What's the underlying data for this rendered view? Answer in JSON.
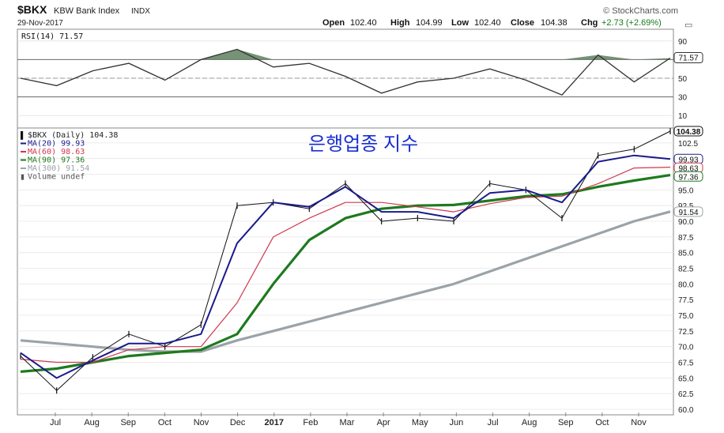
{
  "header": {
    "symbol": "$BKX",
    "name": "KBW Bank Index",
    "exchange": "INDX",
    "date": "29-Nov-2017",
    "brand": "© StockCharts.com",
    "quote": {
      "open_label": "Open",
      "open": "102.40",
      "high_label": "High",
      "high": "104.99",
      "low_label": "Low",
      "low": "102.40",
      "close_label": "Close",
      "close": "104.38",
      "chg_label": "Chg",
      "chg": "+2.73 (+2.69%)"
    }
  },
  "annotation": "은행업종 지수",
  "rsi_panel": {
    "label": "RSI(14) 71.57",
    "last_value_tag": "71.57",
    "axis_ticks": [
      90,
      70,
      50,
      30,
      10
    ],
    "colors": {
      "line": "#333333",
      "fill_overbought": "#5f7f5f"
    }
  },
  "price_panel": {
    "legend": [
      {
        "text": "$BKX (Daily) 104.38",
        "color": "#222222",
        "key": "bars"
      },
      {
        "text": "MA(20) 99.93",
        "color": "#1a1a8c",
        "key": "ma20"
      },
      {
        "text": "MA(60) 98.63",
        "color": "#d0384f",
        "key": "ma60"
      },
      {
        "text": "MA(90) 97.36",
        "color": "#1e7a1e",
        "key": "ma90"
      },
      {
        "text": "MA(300) 91.54",
        "color": "#9aa3a8",
        "key": "ma300"
      },
      {
        "text": "Volume undef",
        "color": "#555555",
        "key": "volume"
      }
    ],
    "last_tags": [
      {
        "text": "104.38",
        "value": 104.38,
        "style": "bold"
      },
      {
        "text": "99.93",
        "value": 99.93,
        "color": "#1a1a8c"
      },
      {
        "text": "98.63",
        "value": 98.63,
        "color": "#d0384f"
      },
      {
        "text": "97.36",
        "value": 97.36,
        "color": "#1e7a1e"
      },
      {
        "text": "91.54",
        "value": 91.54,
        "color": "#9aa3a8"
      }
    ],
    "y_ticks": [
      102.5,
      100.0,
      97.5,
      95.0,
      92.5,
      90.0,
      87.5,
      85.0,
      82.5,
      80.0,
      77.5,
      75.0,
      72.5,
      70.0,
      67.5,
      65.0,
      62.5,
      60.0
    ]
  },
  "x_axis": {
    "labels": [
      {
        "text": "Jul",
        "bold": false
      },
      {
        "text": "Aug",
        "bold": false
      },
      {
        "text": "Sep",
        "bold": false
      },
      {
        "text": "Oct",
        "bold": false
      },
      {
        "text": "Nov",
        "bold": false
      },
      {
        "text": "Dec",
        "bold": false
      },
      {
        "text": "2017",
        "bold": true
      },
      {
        "text": "Feb",
        "bold": false
      },
      {
        "text": "Mar",
        "bold": false
      },
      {
        "text": "Apr",
        "bold": false
      },
      {
        "text": "May",
        "bold": false
      },
      {
        "text": "Jun",
        "bold": false
      },
      {
        "text": "Jul",
        "bold": false
      },
      {
        "text": "Aug",
        "bold": false
      },
      {
        "text": "Sep",
        "bold": false
      },
      {
        "text": "Oct",
        "bold": false
      },
      {
        "text": "Nov",
        "bold": false
      }
    ]
  },
  "chart_data": [
    {
      "type": "line",
      "panel": "rsi",
      "ylim": [
        0,
        100
      ],
      "series": [
        {
          "name": "RSI(14)",
          "x": [
            "2016-06",
            "2016-07",
            "2016-08",
            "2016-09",
            "2016-10",
            "2016-11",
            "2016-12",
            "2017-01",
            "2017-02",
            "2017-03",
            "2017-04",
            "2017-05",
            "2017-06",
            "2017-07",
            "2017-08",
            "2017-09",
            "2017-10",
            "2017-11",
            "2017-11-29"
          ],
          "values": [
            50,
            42,
            58,
            66,
            48,
            70,
            81,
            62,
            66,
            52,
            34,
            46,
            50,
            60,
            48,
            32,
            75,
            46,
            71.57
          ]
        }
      ]
    },
    {
      "type": "line",
      "panel": "price",
      "title": "$BKX (Daily) 104.38",
      "ylim": [
        59.5,
        104.5
      ],
      "x": [
        "2016-06",
        "2016-07",
        "2016-08",
        "2016-09",
        "2016-10",
        "2016-11",
        "2016-12",
        "2017-01",
        "2017-02",
        "2017-03",
        "2017-04",
        "2017-05",
        "2017-06",
        "2017-07",
        "2017-08",
        "2017-09",
        "2017-10",
        "2017-11",
        "2017-11-29"
      ],
      "series": [
        {
          "name": "$BKX (Daily)",
          "values": [
            68.5,
            63.0,
            68.3,
            72.0,
            70.0,
            73.5,
            92.5,
            93.0,
            92.0,
            96.0,
            90.0,
            90.5,
            90.0,
            96.0,
            95.0,
            90.5,
            100.5,
            101.5,
            104.38
          ]
        },
        {
          "name": "MA(20)",
          "values": [
            69.0,
            65.0,
            67.8,
            70.5,
            70.5,
            72.0,
            86.5,
            93.0,
            92.3,
            95.5,
            91.5,
            91.5,
            90.5,
            94.5,
            95.0,
            93.0,
            99.5,
            100.5,
            99.93
          ]
        },
        {
          "name": "MA(60)",
          "values": [
            68.0,
            67.5,
            67.5,
            69.5,
            70.0,
            70.0,
            77.0,
            87.5,
            90.5,
            93.0,
            93.0,
            92.3,
            91.5,
            92.8,
            93.8,
            94.0,
            96.0,
            98.5,
            98.63
          ]
        },
        {
          "name": "MA(90)",
          "values": [
            66.0,
            66.5,
            67.5,
            68.5,
            69.0,
            69.5,
            72.0,
            80.0,
            87.0,
            90.5,
            92.0,
            92.5,
            92.6,
            93.3,
            94.0,
            94.3,
            95.5,
            96.5,
            97.36
          ]
        },
        {
          "name": "MA(300)",
          "values": [
            71.0,
            70.5,
            70.0,
            69.5,
            69.2,
            69.2,
            71.0,
            72.5,
            74.0,
            75.5,
            77.0,
            78.5,
            80.0,
            82.0,
            84.0,
            86.0,
            88.0,
            90.0,
            91.54
          ]
        }
      ]
    }
  ]
}
